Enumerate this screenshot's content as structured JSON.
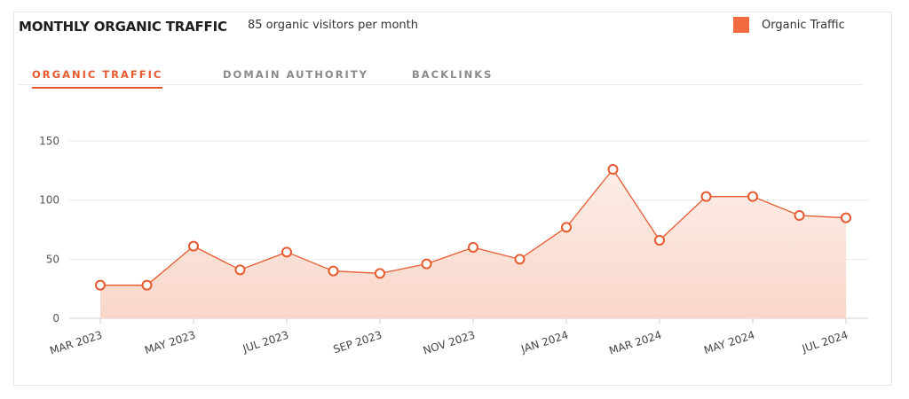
{
  "header": {
    "title": "MONTHLY ORGANIC TRAFFIC",
    "subtitle": "85 organic visitors per month"
  },
  "legend": {
    "label": "Organic Traffic",
    "color": "#f26a3d"
  },
  "tabs": [
    {
      "label": "ORGANIC TRAFFIC",
      "active": true
    },
    {
      "label": "DOMAIN AUTHORITY",
      "active": false
    },
    {
      "label": "BACKLINKS",
      "active": false
    }
  ],
  "colors": {
    "accent": "#e8592f",
    "line": "#e8592f",
    "fill": "#fbe3da"
  },
  "chart_data": {
    "type": "area",
    "x": [
      "2023-03",
      "2023-04",
      "2023-05",
      "2023-06",
      "2023-07",
      "2023-08",
      "2023-09",
      "2023-10",
      "2023-11",
      "2023-12",
      "2024-01",
      "2024-02",
      "2024-03",
      "2024-04",
      "2024-05",
      "2024-06",
      "2024-07"
    ],
    "series": [
      {
        "name": "Organic Traffic",
        "values": [
          28,
          28,
          61,
          41,
          56,
          40,
          38,
          46,
          60,
          50,
          77,
          126,
          66,
          103,
          103,
          87,
          85
        ]
      }
    ],
    "x_tick_labels": [
      "MAR 2023",
      "MAY 2023",
      "JUL 2023",
      "SEP 2023",
      "NOV 2023",
      "JAN 2024",
      "MAR 2024",
      "MAY 2024",
      "JUL 2024"
    ],
    "x_tick_months": [
      "2023-03",
      "2023-05",
      "2023-07",
      "2023-09",
      "2023-11",
      "2024-01",
      "2024-03",
      "2024-05",
      "2024-07"
    ],
    "y_ticks": [
      0,
      50,
      100,
      150
    ],
    "ylim": [
      0,
      150
    ],
    "grid": true,
    "legend_position": "top-right"
  }
}
